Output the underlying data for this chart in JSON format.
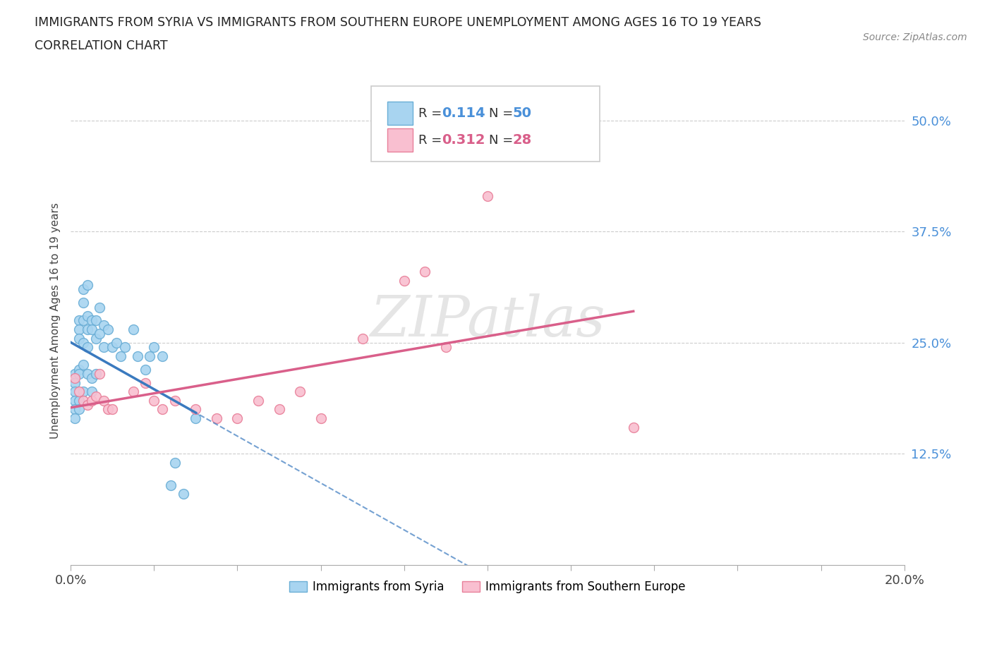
{
  "title_line1": "IMMIGRANTS FROM SYRIA VS IMMIGRANTS FROM SOUTHERN EUROPE UNEMPLOYMENT AMONG AGES 16 TO 19 YEARS",
  "title_line2": "CORRELATION CHART",
  "source_text": "Source: ZipAtlas.com",
  "ylabel": "Unemployment Among Ages 16 to 19 years",
  "xlim": [
    0.0,
    0.2
  ],
  "ylim": [
    0.0,
    0.55
  ],
  "ytick_labels": [
    "12.5%",
    "25.0%",
    "37.5%",
    "50.0%"
  ],
  "ytick_vals": [
    0.125,
    0.25,
    0.375,
    0.5
  ],
  "xtick_vals": [
    0.0,
    0.02,
    0.04,
    0.06,
    0.08,
    0.1,
    0.12,
    0.14,
    0.16,
    0.18,
    0.2
  ],
  "xtick_edge_labels": [
    "0.0%",
    "20.0%"
  ],
  "R_blue": 0.114,
  "N_blue": 50,
  "R_pink": 0.312,
  "N_pink": 28,
  "color_blue_fill": "#a8d4f0",
  "color_blue_edge": "#6aaed6",
  "color_pink_fill": "#f9bfd0",
  "color_pink_edge": "#e8809a",
  "color_line_blue": "#3a7abf",
  "color_line_pink": "#d95f8a",
  "color_ytick": "#4a90d9",
  "watermark_text": "ZIPatlas",
  "legend_label_blue": "Immigrants from Syria",
  "legend_label_pink": "Immigrants from Southern Europe",
  "syria_x": [
    0.001,
    0.001,
    0.001,
    0.001,
    0.001,
    0.001,
    0.002,
    0.002,
    0.002,
    0.002,
    0.002,
    0.002,
    0.002,
    0.003,
    0.003,
    0.003,
    0.003,
    0.003,
    0.003,
    0.004,
    0.004,
    0.004,
    0.004,
    0.004,
    0.005,
    0.005,
    0.005,
    0.005,
    0.006,
    0.006,
    0.006,
    0.007,
    0.007,
    0.008,
    0.008,
    0.009,
    0.01,
    0.011,
    0.012,
    0.013,
    0.015,
    0.016,
    0.018,
    0.019,
    0.02,
    0.022,
    0.024,
    0.025,
    0.027,
    0.03
  ],
  "syria_y": [
    0.215,
    0.205,
    0.195,
    0.185,
    0.175,
    0.165,
    0.275,
    0.265,
    0.255,
    0.22,
    0.215,
    0.185,
    0.175,
    0.31,
    0.295,
    0.275,
    0.25,
    0.225,
    0.195,
    0.315,
    0.28,
    0.265,
    0.245,
    0.215,
    0.275,
    0.265,
    0.21,
    0.195,
    0.275,
    0.255,
    0.215,
    0.29,
    0.26,
    0.27,
    0.245,
    0.265,
    0.245,
    0.25,
    0.235,
    0.245,
    0.265,
    0.235,
    0.22,
    0.235,
    0.245,
    0.235,
    0.09,
    0.115,
    0.08,
    0.165
  ],
  "seurope_x": [
    0.001,
    0.002,
    0.003,
    0.004,
    0.005,
    0.006,
    0.007,
    0.008,
    0.009,
    0.01,
    0.015,
    0.018,
    0.02,
    0.022,
    0.025,
    0.03,
    0.035,
    0.04,
    0.045,
    0.05,
    0.055,
    0.06,
    0.07,
    0.08,
    0.085,
    0.09,
    0.1,
    0.135
  ],
  "seurope_y": [
    0.21,
    0.195,
    0.185,
    0.18,
    0.185,
    0.19,
    0.215,
    0.185,
    0.175,
    0.175,
    0.195,
    0.205,
    0.185,
    0.175,
    0.185,
    0.175,
    0.165,
    0.165,
    0.185,
    0.175,
    0.195,
    0.165,
    0.255,
    0.32,
    0.33,
    0.245,
    0.415,
    0.155
  ]
}
